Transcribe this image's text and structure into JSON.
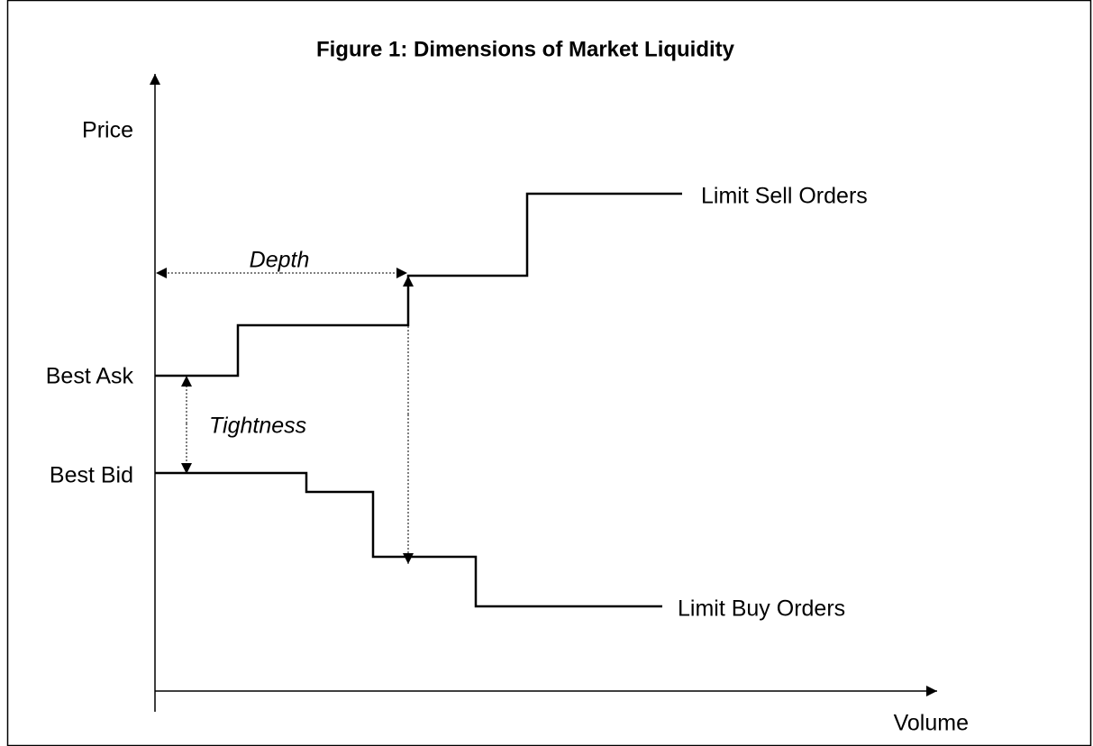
{
  "title": "Figure 1: Dimensions of Market Liquidity",
  "y_axis_label": "Price",
  "x_axis_label": "Volume",
  "best_ask_label": "Best Ask",
  "best_bid_label": "Best Bid",
  "sell_curve_label": "Limit Sell Orders",
  "buy_curve_label": "Limit Buy Orders",
  "depth_label": "Depth",
  "tightness_label": "Tightness"
}
